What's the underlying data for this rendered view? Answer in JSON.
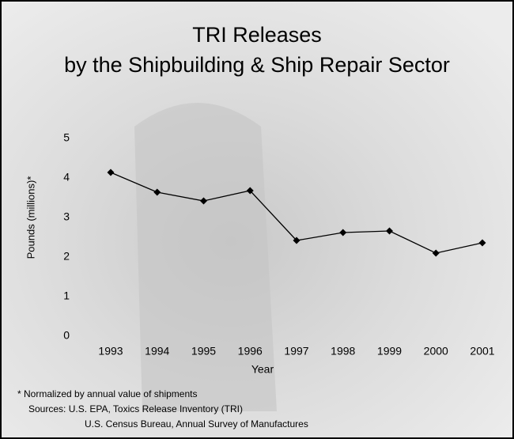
{
  "chart_data": {
    "type": "line",
    "title": "TRI Releases",
    "subtitle": "by the Shipbuilding & Ship Repair Sector",
    "x_label": "Year",
    "y_label": "Pounds (millions)*",
    "categories": [
      "1993",
      "1994",
      "1995",
      "1996",
      "1997",
      "1998",
      "1999",
      "2000",
      "2001"
    ],
    "values": [
      4.14,
      3.64,
      3.42,
      3.68,
      2.42,
      2.62,
      2.66,
      2.1,
      2.36
    ],
    "color": "#000000",
    "ylim": [
      0,
      5
    ],
    "yticks": [
      0,
      1,
      2,
      3,
      4,
      5
    ],
    "grid": false,
    "annotations": [
      "* Normalized by annual value of shipments",
      "Sources: U.S. EPA, Toxics Release Inventory (TRI)",
      "U.S. Census Bureau, Annual Survey of Manufactures"
    ]
  }
}
